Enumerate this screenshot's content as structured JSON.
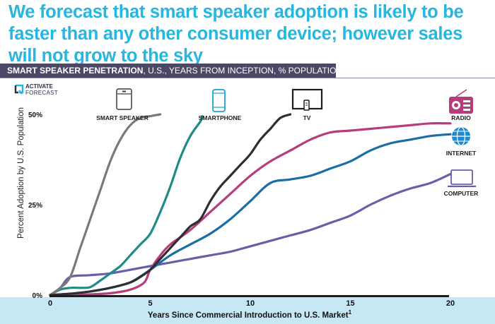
{
  "headline": "We forecast that smart speaker adoption is likely to be faster than any other consumer device; however sales will not grow to the sky",
  "banner": {
    "bold": "SMART SPEAKER PENETRATION",
    "rest": ", U.S., YEARS FROM INCEPTION, % POPULATION"
  },
  "logo": {
    "line1": "ACTIVATE",
    "line2": "FORECAST"
  },
  "colors": {
    "headline": "#27b6e0",
    "banner": "#4b4866",
    "axis_band": "#c6e7f4"
  },
  "chart_data": {
    "type": "line",
    "xlabel": "Years Since Commercial Introduction to U.S. Market",
    "xlabel_superscript": "1",
    "ylabel": "Percent Adoption by U.S. Population",
    "xlim": [
      0,
      20
    ],
    "ylim": [
      0,
      50
    ],
    "xticks": [
      0,
      5,
      10,
      15,
      20
    ],
    "yticks": [
      {
        "value": 0,
        "label": "0%"
      },
      {
        "value": 25,
        "label": "25%"
      },
      {
        "value": 50,
        "label": "50%"
      }
    ],
    "grid": false,
    "series": [
      {
        "name": "SMART SPEAKER",
        "icon": "smart-speaker-icon",
        "color": "#7a7a7e",
        "points": [
          [
            0,
            0
          ],
          [
            0.5,
            2
          ],
          [
            1,
            5
          ],
          [
            1.5,
            13
          ],
          [
            2,
            21
          ],
          [
            2.5,
            29
          ],
          [
            3,
            37
          ],
          [
            3.5,
            43
          ],
          [
            4,
            47
          ],
          [
            4.5,
            49
          ],
          [
            5,
            49.5
          ],
          [
            5.5,
            50
          ]
        ]
      },
      {
        "name": "SMARTPHONE",
        "icon": "smartphone-icon",
        "color": "#1f8a87",
        "points": [
          [
            0,
            0
          ],
          [
            0.5,
            1.5
          ],
          [
            1,
            2
          ],
          [
            1.5,
            2
          ],
          [
            2,
            2.2
          ],
          [
            2.5,
            4
          ],
          [
            3,
            6
          ],
          [
            3.5,
            8
          ],
          [
            4,
            11
          ],
          [
            4.5,
            14
          ],
          [
            5,
            17
          ],
          [
            5.5,
            23
          ],
          [
            6,
            30
          ],
          [
            6.5,
            38
          ],
          [
            7,
            44
          ],
          [
            7.5,
            48
          ],
          [
            7.6,
            49.5
          ]
        ]
      },
      {
        "name": "TV",
        "icon": "tv-icon",
        "color": "#2d2d33",
        "points": [
          [
            0,
            0
          ],
          [
            1,
            0.4
          ],
          [
            2,
            1
          ],
          [
            3,
            2
          ],
          [
            4,
            3.5
          ],
          [
            4.5,
            5
          ],
          [
            5,
            7
          ],
          [
            5.5,
            10
          ],
          [
            6,
            13
          ],
          [
            6.5,
            16
          ],
          [
            7,
            19
          ],
          [
            7.5,
            21
          ],
          [
            8,
            26
          ],
          [
            8.5,
            30
          ],
          [
            9,
            33
          ],
          [
            9.5,
            36
          ],
          [
            10,
            39
          ],
          [
            10.5,
            43
          ],
          [
            11,
            46
          ],
          [
            11.5,
            49
          ],
          [
            12,
            50
          ]
        ]
      },
      {
        "name": "RADIO",
        "icon": "radio-icon",
        "color": "#b73c7c",
        "points": [
          [
            0,
            0
          ],
          [
            1,
            0
          ],
          [
            2,
            0.2
          ],
          [
            3,
            0.5
          ],
          [
            4,
            1.5
          ],
          [
            4.7,
            3.5
          ],
          [
            5,
            7
          ],
          [
            5.5,
            11
          ],
          [
            6,
            14
          ],
          [
            7,
            18
          ],
          [
            8,
            23
          ],
          [
            9,
            28
          ],
          [
            10,
            33
          ],
          [
            11,
            37
          ],
          [
            12,
            40
          ],
          [
            13,
            43
          ],
          [
            14,
            45
          ],
          [
            15,
            45.5
          ],
          [
            16,
            46
          ],
          [
            17,
            46.5
          ],
          [
            18,
            47
          ],
          [
            19,
            47.5
          ],
          [
            20,
            47.5
          ]
        ]
      },
      {
        "name": "INTERNET",
        "icon": "internet-icon",
        "color": "#1b6ea4",
        "points": [
          [
            0,
            0
          ],
          [
            1,
            0.3
          ],
          [
            2,
            1
          ],
          [
            3,
            2
          ],
          [
            4,
            3.5
          ],
          [
            5,
            7
          ],
          [
            6,
            11
          ],
          [
            7,
            14
          ],
          [
            8,
            17
          ],
          [
            9,
            21
          ],
          [
            10,
            26
          ],
          [
            11,
            31
          ],
          [
            12,
            32
          ],
          [
            13,
            33
          ],
          [
            14,
            35
          ],
          [
            15,
            37
          ],
          [
            16,
            40
          ],
          [
            17,
            42
          ],
          [
            18,
            43
          ],
          [
            19,
            44
          ],
          [
            20,
            44.5
          ]
        ]
      },
      {
        "name": "COMPUTER",
        "icon": "computer-icon",
        "color": "#6b5ea8",
        "points": [
          [
            0,
            0
          ],
          [
            0.5,
            2
          ],
          [
            1,
            5
          ],
          [
            2,
            5.5
          ],
          [
            3,
            6
          ],
          [
            4,
            7
          ],
          [
            5,
            8
          ],
          [
            6,
            9
          ],
          [
            7,
            10
          ],
          [
            8,
            11
          ],
          [
            9,
            12
          ],
          [
            10,
            13.5
          ],
          [
            11,
            15
          ],
          [
            12,
            16.5
          ],
          [
            13,
            18
          ],
          [
            14,
            20
          ],
          [
            15,
            22
          ],
          [
            16,
            25
          ],
          [
            17,
            27.5
          ],
          [
            18,
            29.5
          ],
          [
            19,
            31
          ],
          [
            20,
            33.5
          ]
        ]
      }
    ]
  }
}
